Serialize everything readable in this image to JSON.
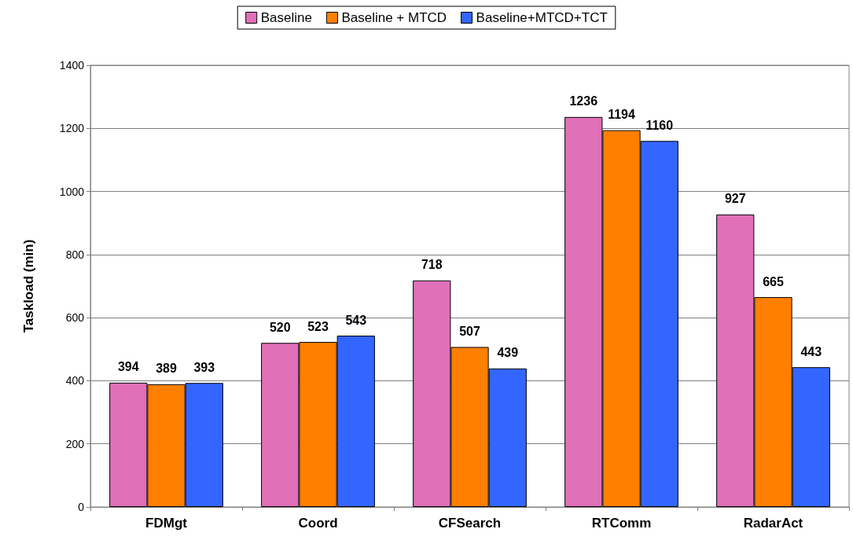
{
  "chart_data": {
    "type": "bar",
    "ylabel": "Taskload (min)",
    "categories": [
      "FDMgt",
      "Coord",
      "CFSearch",
      "RTComm",
      "RadarAct"
    ],
    "series": [
      {
        "name": "Baseline",
        "color": "#e070b8",
        "values": [
          394,
          520,
          718,
          1236,
          927
        ]
      },
      {
        "name": "Baseline + MTCD",
        "color": "#ff8000",
        "values": [
          389,
          523,
          507,
          1194,
          665
        ]
      },
      {
        "name": "Baseline+MTCD+TCT",
        "color": "#3366ff",
        "values": [
          393,
          543,
          439,
          1160,
          443
        ]
      }
    ],
    "ylim": [
      0,
      1400
    ],
    "yticks": [
      0,
      200,
      400,
      600,
      800,
      1000,
      1200,
      1400
    ],
    "grid": "y",
    "legend": "top",
    "data_labels": true
  }
}
